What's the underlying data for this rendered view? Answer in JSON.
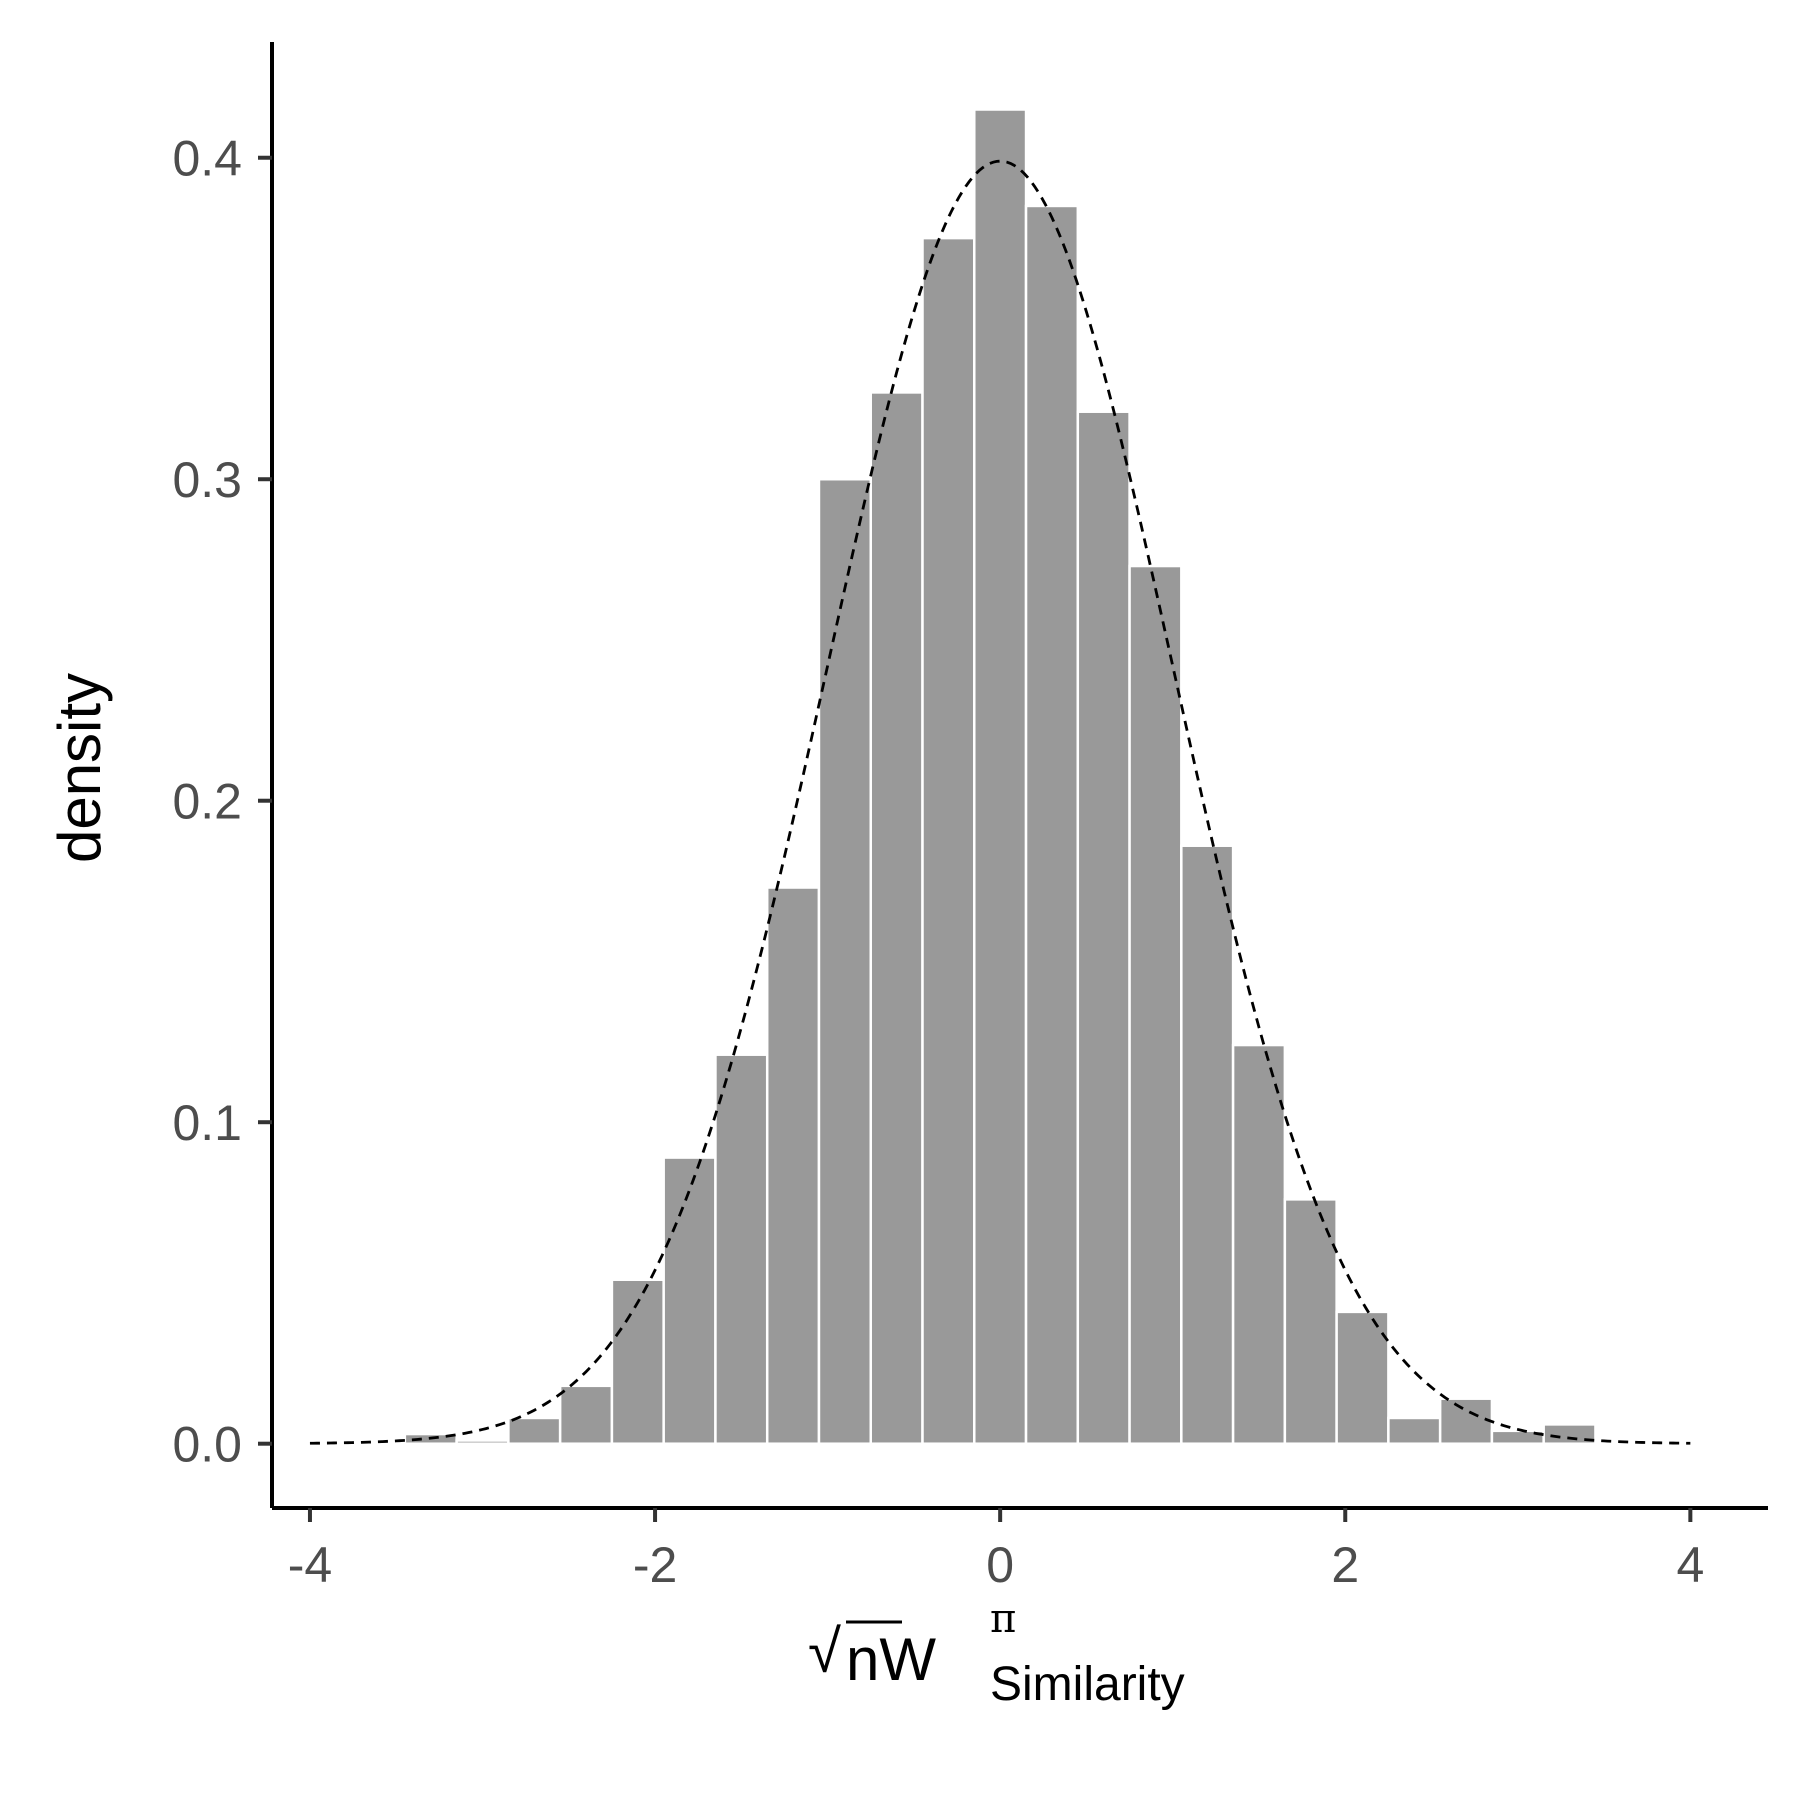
{
  "chart_data": {
    "type": "bar",
    "subtype": "histogram",
    "title": "",
    "xlabel": {
      "radical": "√",
      "base": "nW",
      "superscript": "π",
      "subscript": "Similarity"
    },
    "ylabel": "density",
    "xlim": [
      -4.22,
      4.45
    ],
    "ylim": [
      -0.02,
      0.436
    ],
    "x_ticks": [
      -4,
      -2,
      0,
      2,
      4
    ],
    "x_tick_labels": [
      "-4",
      "-2",
      "0",
      "2",
      "4"
    ],
    "y_ticks": [
      0.0,
      0.1,
      0.2,
      0.3,
      0.4
    ],
    "y_tick_labels": [
      "0.0",
      "0.1",
      "0.2",
      "0.3",
      "0.4"
    ],
    "grid": false,
    "legend": "none",
    "bin_width": 0.3,
    "bins": [
      {
        "center": -3.6,
        "density": 0.0005
      },
      {
        "center": -3.3,
        "density": 0.003
      },
      {
        "center": -3.0,
        "density": 0.001
      },
      {
        "center": -2.7,
        "density": 0.008
      },
      {
        "center": -2.4,
        "density": 0.018
      },
      {
        "center": -2.1,
        "density": 0.051
      },
      {
        "center": -1.8,
        "density": 0.089
      },
      {
        "center": -1.5,
        "density": 0.121
      },
      {
        "center": -1.2,
        "density": 0.173
      },
      {
        "center": -0.9,
        "density": 0.3
      },
      {
        "center": -0.6,
        "density": 0.327
      },
      {
        "center": -0.3,
        "density": 0.375
      },
      {
        "center": 0.0,
        "density": 0.415
      },
      {
        "center": 0.3,
        "density": 0.385
      },
      {
        "center": 0.6,
        "density": 0.321
      },
      {
        "center": 0.9,
        "density": 0.273
      },
      {
        "center": 1.2,
        "density": 0.186
      },
      {
        "center": 1.5,
        "density": 0.124
      },
      {
        "center": 1.8,
        "density": 0.076
      },
      {
        "center": 2.1,
        "density": 0.041
      },
      {
        "center": 2.4,
        "density": 0.008
      },
      {
        "center": 2.7,
        "density": 0.014
      },
      {
        "center": 3.0,
        "density": 0.004
      },
      {
        "center": 3.3,
        "density": 0.006
      }
    ],
    "overlay": {
      "type": "line",
      "style": "dashed",
      "function": "standard normal density",
      "x_range": [
        -4,
        4
      ]
    },
    "colors": {
      "bar_fill": "#999999",
      "bar_outline": "#ffffff",
      "curve": "#000000",
      "axis": "#000000",
      "tick_label": "#4d4d4d"
    }
  }
}
